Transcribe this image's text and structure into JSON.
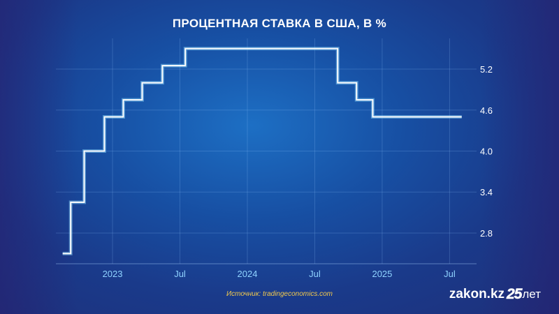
{
  "title": "ПРОЦЕНТНАЯ СТАВКА В США, В %",
  "source": "Источник: tradingeconomics.com",
  "logo": {
    "site": "zakon.kz",
    "number": "25",
    "suffix": "лет"
  },
  "colors": {
    "line": "#ffffff",
    "tick_label_x": "#8fd3ff",
    "tick_label_y": "#ffffff",
    "source": "#f2c94c"
  },
  "chart_data": {
    "type": "line",
    "step": true,
    "title": "ПРОЦЕНТНАЯ СТАВКА В США, В %",
    "xlabel": "",
    "ylabel": "",
    "x_ticks": [
      {
        "label": "2023",
        "t": 2023.0
      },
      {
        "label": "Jul",
        "t": 2023.5
      },
      {
        "label": "2024",
        "t": 2024.0
      },
      {
        "label": "Jul",
        "t": 2024.5
      },
      {
        "label": "2025",
        "t": 2025.0
      },
      {
        "label": "Jul",
        "t": 2025.5
      }
    ],
    "y_ticks": [
      2.8,
      3.4,
      4.0,
      4.6,
      5.2
    ],
    "y_tick_labels": [
      "2.8",
      "3.4",
      "4.0",
      "4.6",
      "5.2"
    ],
    "xlim": [
      2022.58,
      2025.7
    ],
    "ylim": [
      2.35,
      5.65
    ],
    "grid": true,
    "legend": "none",
    "y_axis_side": "right",
    "series": [
      {
        "x": [
          "2022-09",
          "2022-11",
          "2022-12",
          "2023-02",
          "2023-03",
          "2023-05",
          "2023-07",
          "2024-09",
          "2024-11",
          "2024-12",
          "2025-07"
        ],
        "values": [
          2.5,
          3.25,
          4.0,
          4.5,
          4.75,
          5.0,
          5.25,
          5.5,
          5.0,
          4.75,
          4.5
        ],
        "t": [
          2022.63,
          2022.69,
          2022.79,
          2022.94,
          2023.08,
          2023.22,
          2023.37,
          2023.54,
          2024.67,
          2024.81,
          2024.93
        ],
        "t_end": 2025.59
      }
    ]
  }
}
